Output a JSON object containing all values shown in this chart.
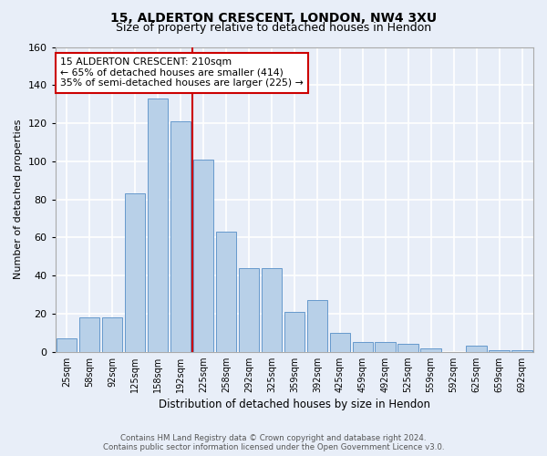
{
  "title_line1": "15, ALDERTON CRESCENT, LONDON, NW4 3XU",
  "title_line2": "Size of property relative to detached houses in Hendon",
  "xlabel": "Distribution of detached houses by size in Hendon",
  "ylabel": "Number of detached properties",
  "categories": [
    "25sqm",
    "58sqm",
    "92sqm",
    "125sqm",
    "158sqm",
    "192sqm",
    "225sqm",
    "258sqm",
    "292sqm",
    "325sqm",
    "359sqm",
    "392sqm",
    "425sqm",
    "459sqm",
    "492sqm",
    "525sqm",
    "559sqm",
    "592sqm",
    "625sqm",
    "659sqm",
    "692sqm"
  ],
  "values": [
    7,
    18,
    18,
    83,
    133,
    121,
    101,
    63,
    44,
    44,
    21,
    27,
    10,
    5,
    5,
    4,
    2,
    0,
    3,
    1,
    1
  ],
  "bar_color": "#b8d0e8",
  "bar_edge_color": "#6699cc",
  "ref_line_color": "#cc0000",
  "annotation_line1": "15 ALDERTON CRESCENT: 210sqm",
  "annotation_line2": "← 65% of detached houses are smaller (414)",
  "annotation_line3": "35% of semi-detached houses are larger (225) →",
  "annotation_box_facecolor": "#ffffff",
  "annotation_box_edgecolor": "#cc0000",
  "ylim": [
    0,
    160
  ],
  "yticks": [
    0,
    20,
    40,
    60,
    80,
    100,
    120,
    140,
    160
  ],
  "footer_line1": "Contains HM Land Registry data © Crown copyright and database right 2024.",
  "footer_line2": "Contains public sector information licensed under the Open Government Licence v3.0.",
  "background_color": "#e8eef8",
  "grid_color": "#ffffff"
}
